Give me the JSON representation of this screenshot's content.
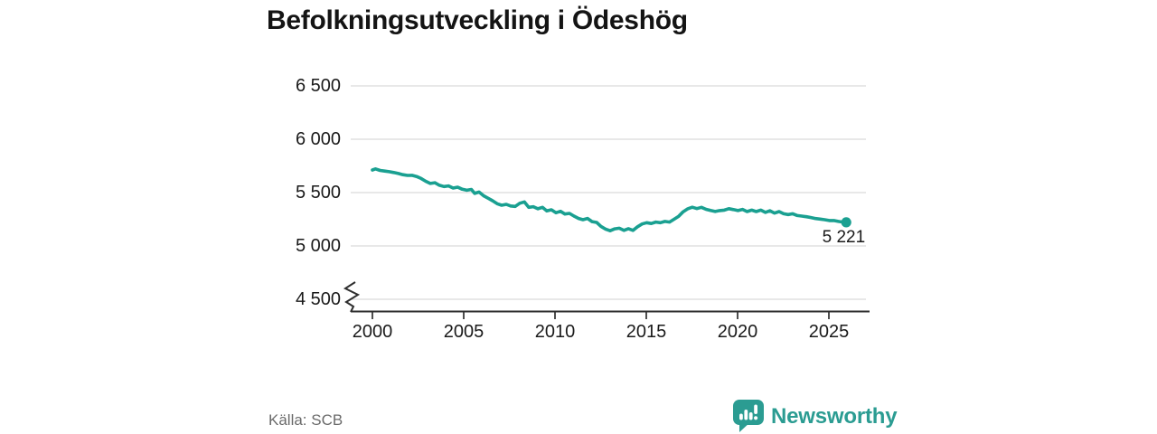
{
  "title": "Befolkningsutveckling i Ödeshög",
  "source": "Källa: SCB",
  "branding": {
    "name": "Newsworthy",
    "icon": "newsworthy-bubble-chart-icon"
  },
  "colors": {
    "line": "#1AA091",
    "logo": "#2B9C92",
    "grid": "#D9D9D9",
    "axis": "#2E2E2E",
    "text": "#1A1A1A",
    "muted": "#6B6B6B"
  },
  "chart_data": {
    "type": "line",
    "title": "Befolkningsutveckling i Ödeshög",
    "xlabel": "",
    "ylabel": "",
    "grid": "horizontal-only",
    "y_axis_break": true,
    "xlim": [
      1999.4,
      2026.4
    ],
    "ylim": [
      4450,
      6600
    ],
    "x_ticks": [
      2000,
      2005,
      2010,
      2015,
      2020,
      2025
    ],
    "x_tick_labels": [
      "2000",
      "2005",
      "2010",
      "2015",
      "2020",
      "2025"
    ],
    "y_ticks": [
      4500,
      5000,
      5500,
      6000,
      6500
    ],
    "y_tick_labels": [
      "4 500",
      "5 000",
      "5 500",
      "6 000",
      "6 500"
    ],
    "last_point": {
      "x": 2025.95,
      "value": 5221,
      "label": "5 221",
      "marker": "dot"
    },
    "last_value_label": "5 221",
    "points": [
      [
        2000.0,
        5712
      ],
      [
        2000.17,
        5722
      ],
      [
        2000.42,
        5708
      ],
      [
        2000.67,
        5702
      ],
      [
        2000.92,
        5696
      ],
      [
        2001.17,
        5688
      ],
      [
        2001.42,
        5679
      ],
      [
        2001.67,
        5668
      ],
      [
        2001.92,
        5661
      ],
      [
        2002.17,
        5662
      ],
      [
        2002.42,
        5651
      ],
      [
        2002.67,
        5632
      ],
      [
        2002.92,
        5606
      ],
      [
        2003.17,
        5586
      ],
      [
        2003.42,
        5592
      ],
      [
        2003.67,
        5569
      ],
      [
        2003.92,
        5557
      ],
      [
        2004.17,
        5563
      ],
      [
        2004.42,
        5542
      ],
      [
        2004.67,
        5551
      ],
      [
        2004.92,
        5531
      ],
      [
        2005.17,
        5522
      ],
      [
        2005.42,
        5530
      ],
      [
        2005.6,
        5492
      ],
      [
        2005.84,
        5505
      ],
      [
        2006.09,
        5470
      ],
      [
        2006.34,
        5447
      ],
      [
        2006.58,
        5424
      ],
      [
        2006.83,
        5396
      ],
      [
        2007.08,
        5381
      ],
      [
        2007.33,
        5390
      ],
      [
        2007.57,
        5375
      ],
      [
        2007.82,
        5370
      ],
      [
        2008.07,
        5400
      ],
      [
        2008.32,
        5413
      ],
      [
        2008.56,
        5362
      ],
      [
        2008.81,
        5368
      ],
      [
        2009.06,
        5348
      ],
      [
        2009.31,
        5362
      ],
      [
        2009.55,
        5328
      ],
      [
        2009.8,
        5339
      ],
      [
        2010.05,
        5311
      ],
      [
        2010.3,
        5325
      ],
      [
        2010.54,
        5299
      ],
      [
        2010.79,
        5305
      ],
      [
        2011.04,
        5280
      ],
      [
        2011.29,
        5258
      ],
      [
        2011.53,
        5246
      ],
      [
        2011.78,
        5258
      ],
      [
        2012.03,
        5228
      ],
      [
        2012.28,
        5220
      ],
      [
        2012.52,
        5183
      ],
      [
        2012.77,
        5158
      ],
      [
        2013.02,
        5142
      ],
      [
        2013.27,
        5160
      ],
      [
        2013.52,
        5166
      ],
      [
        2013.77,
        5146
      ],
      [
        2014.02,
        5162
      ],
      [
        2014.27,
        5146
      ],
      [
        2014.52,
        5180
      ],
      [
        2014.77,
        5206
      ],
      [
        2015.02,
        5218
      ],
      [
        2015.27,
        5210
      ],
      [
        2015.52,
        5224
      ],
      [
        2015.77,
        5218
      ],
      [
        2016.02,
        5230
      ],
      [
        2016.27,
        5224
      ],
      [
        2016.52,
        5250
      ],
      [
        2016.77,
        5278
      ],
      [
        2017.02,
        5320
      ],
      [
        2017.27,
        5348
      ],
      [
        2017.52,
        5363
      ],
      [
        2017.77,
        5350
      ],
      [
        2018.02,
        5362
      ],
      [
        2018.27,
        5343
      ],
      [
        2018.52,
        5332
      ],
      [
        2018.77,
        5323
      ],
      [
        2019.02,
        5331
      ],
      [
        2019.27,
        5336
      ],
      [
        2019.52,
        5349
      ],
      [
        2019.77,
        5341
      ],
      [
        2020.02,
        5331
      ],
      [
        2020.27,
        5342
      ],
      [
        2020.52,
        5322
      ],
      [
        2020.77,
        5336
      ],
      [
        2021.02,
        5322
      ],
      [
        2021.27,
        5336
      ],
      [
        2021.52,
        5314
      ],
      [
        2021.77,
        5330
      ],
      [
        2022.02,
        5308
      ],
      [
        2022.27,
        5322
      ],
      [
        2022.52,
        5302
      ],
      [
        2022.77,
        5294
      ],
      [
        2023.02,
        5302
      ],
      [
        2023.27,
        5285
      ],
      [
        2023.52,
        5280
      ],
      [
        2023.77,
        5274
      ],
      [
        2024.02,
        5266
      ],
      [
        2024.27,
        5257
      ],
      [
        2024.52,
        5252
      ],
      [
        2024.77,
        5246
      ],
      [
        2025.02,
        5238
      ],
      [
        2025.27,
        5238
      ],
      [
        2025.52,
        5230
      ],
      [
        2025.77,
        5224
      ],
      [
        2025.95,
        5221
      ]
    ]
  }
}
